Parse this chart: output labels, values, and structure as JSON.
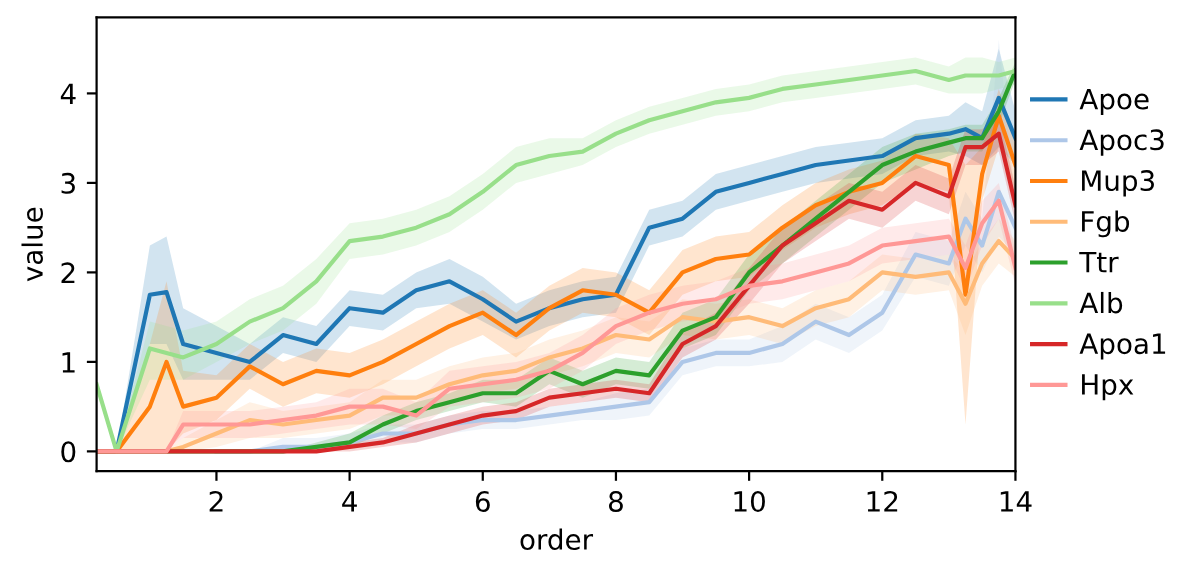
{
  "chart_data": {
    "type": "line",
    "xlabel": "order",
    "ylabel": "value",
    "x": [
      0.2,
      0.5,
      1,
      1.25,
      1.5,
      2,
      2.5,
      3,
      3.5,
      4,
      4.5,
      5,
      5.5,
      6,
      6.5,
      7,
      7.5,
      8,
      8.5,
      9,
      9.5,
      10,
      10.5,
      11,
      11.5,
      12,
      12.5,
      13,
      13.25,
      13.5,
      13.75,
      14
    ],
    "xlim": [
      0.2,
      14.0
    ],
    "xticks": [
      2,
      4,
      6,
      8,
      10,
      12,
      14
    ],
    "ylim": [
      -0.22,
      4.85
    ],
    "yticks": [
      0,
      1,
      2,
      3,
      4
    ],
    "grid": false,
    "legend": "right",
    "marker": "none",
    "line_style": "solid",
    "series": [
      {
        "name": "Apoe",
        "color": "#1f77b4",
        "values": [
          0,
          0,
          1.75,
          1.78,
          1.2,
          1.1,
          1.0,
          1.3,
          1.2,
          1.6,
          1.55,
          1.8,
          1.9,
          1.7,
          1.45,
          1.6,
          1.7,
          1.75,
          2.5,
          2.6,
          2.9,
          3.0,
          3.1,
          3.2,
          3.25,
          3.3,
          3.5,
          3.55,
          3.6,
          3.5,
          3.95,
          3.5
        ],
        "lower": [
          0,
          0,
          1.2,
          1.2,
          0.8,
          0.8,
          0.8,
          1.1,
          1.0,
          1.4,
          1.35,
          1.6,
          1.65,
          1.45,
          1.25,
          1.4,
          1.5,
          1.55,
          2.3,
          2.4,
          2.7,
          2.8,
          2.9,
          3.0,
          3.05,
          3.1,
          3.3,
          3.35,
          3.3,
          3.2,
          3.4,
          3.2
        ],
        "upper": [
          0,
          0,
          2.3,
          2.4,
          1.6,
          1.4,
          1.2,
          1.5,
          1.4,
          1.8,
          1.75,
          2.0,
          2.15,
          1.95,
          1.65,
          1.8,
          1.9,
          1.95,
          2.7,
          2.8,
          3.1,
          3.2,
          3.3,
          3.4,
          3.45,
          3.5,
          3.7,
          3.75,
          3.9,
          3.8,
          4.5,
          3.8
        ]
      },
      {
        "name": "Apoc3",
        "color": "#aec7e8",
        "values": [
          null,
          null,
          null,
          null,
          null,
          0,
          0,
          0.05,
          0.05,
          0.1,
          0.2,
          0.2,
          0.3,
          0.35,
          0.35,
          0.4,
          0.45,
          0.5,
          0.55,
          1.0,
          1.1,
          1.1,
          1.2,
          1.45,
          1.3,
          1.55,
          2.2,
          2.1,
          2.6,
          2.3,
          2.9,
          2.5
        ],
        "lower": [
          0,
          0,
          0,
          0,
          0,
          0,
          0,
          0,
          0,
          0.05,
          0.1,
          0.1,
          0.2,
          0.25,
          0.25,
          0.3,
          0.35,
          0.35,
          0.4,
          0.85,
          0.95,
          0.95,
          1.0,
          1.25,
          1.1,
          1.35,
          1.95,
          1.85,
          2.3,
          2.0,
          2.4,
          2.2
        ],
        "upper": [
          0,
          0,
          0,
          0,
          0,
          0,
          0,
          0.15,
          0.15,
          0.2,
          0.3,
          0.3,
          0.4,
          0.45,
          0.45,
          0.5,
          0.55,
          0.65,
          0.7,
          1.15,
          1.25,
          1.25,
          1.4,
          1.65,
          1.5,
          1.75,
          2.45,
          2.35,
          2.9,
          2.6,
          4.6,
          2.8
        ]
      },
      {
        "name": "Mup3",
        "color": "#ff7f0e",
        "values": [
          0,
          0,
          0.5,
          1.0,
          0.5,
          0.6,
          0.95,
          0.75,
          0.9,
          0.85,
          1.0,
          1.2,
          1.4,
          1.55,
          1.3,
          1.6,
          1.8,
          1.75,
          1.55,
          2.0,
          2.15,
          2.2,
          2.5,
          2.75,
          2.9,
          3.0,
          3.3,
          3.2,
          1.75,
          3.1,
          3.75,
          3.2
        ],
        "lower": [
          0,
          0,
          0,
          0,
          0.2,
          0.35,
          0.7,
          0.5,
          0.65,
          0.6,
          0.75,
          0.95,
          1.15,
          1.3,
          1.05,
          1.35,
          1.55,
          1.5,
          1.3,
          1.75,
          1.9,
          1.95,
          2.25,
          2.5,
          2.65,
          2.75,
          3.0,
          2.9,
          0.3,
          2.8,
          3.4,
          2.9
        ],
        "upper": [
          0,
          0,
          1.2,
          1.9,
          0.9,
          0.85,
          1.2,
          1.0,
          1.15,
          1.1,
          1.25,
          1.45,
          1.65,
          1.8,
          1.55,
          1.85,
          2.05,
          2.0,
          1.8,
          2.25,
          2.4,
          2.45,
          2.75,
          3.0,
          3.15,
          3.25,
          3.55,
          3.5,
          3.2,
          3.4,
          4.05,
          3.5
        ]
      },
      {
        "name": "Fgb",
        "color": "#ffbb78",
        "values": [
          0,
          0,
          0,
          0,
          0.05,
          0.2,
          0.35,
          0.3,
          0.35,
          0.4,
          0.6,
          0.6,
          0.75,
          0.85,
          0.9,
          1.05,
          1.15,
          1.3,
          1.25,
          1.5,
          1.45,
          1.5,
          1.4,
          1.6,
          1.7,
          2.0,
          1.95,
          2.0,
          1.65,
          2.1,
          2.35,
          2.15
        ],
        "lower": [
          0,
          0,
          0,
          0,
          0,
          0.05,
          0.15,
          0.15,
          0.2,
          0.25,
          0.4,
          0.4,
          0.55,
          0.65,
          0.7,
          0.85,
          0.95,
          1.1,
          1.05,
          1.3,
          1.25,
          1.3,
          1.2,
          1.4,
          1.5,
          1.8,
          1.75,
          1.8,
          1.3,
          1.85,
          2.1,
          1.95
        ],
        "upper": [
          0,
          0,
          0,
          0,
          0.15,
          0.35,
          0.55,
          0.45,
          0.5,
          0.55,
          0.8,
          0.8,
          0.95,
          1.05,
          1.1,
          1.25,
          1.35,
          1.5,
          1.45,
          1.7,
          1.65,
          1.7,
          1.6,
          1.8,
          1.9,
          2.2,
          2.15,
          2.2,
          2.0,
          2.35,
          2.6,
          2.35
        ]
      },
      {
        "name": "Ttr",
        "color": "#2ca02c",
        "values": [
          0,
          0,
          0,
          0,
          0,
          0,
          0,
          0,
          0.05,
          0.1,
          0.3,
          0.45,
          0.55,
          0.65,
          0.65,
          0.9,
          0.75,
          0.9,
          0.85,
          1.35,
          1.5,
          2.0,
          2.3,
          2.6,
          2.9,
          3.2,
          3.35,
          3.45,
          3.5,
          3.5,
          3.8,
          4.25
        ],
        "lower": [
          0,
          0,
          0,
          0,
          0,
          0,
          0,
          0,
          0,
          0.05,
          0.2,
          0.35,
          0.45,
          0.55,
          0.5,
          0.75,
          0.6,
          0.75,
          0.7,
          1.15,
          1.3,
          1.8,
          2.1,
          2.4,
          2.7,
          3.0,
          3.15,
          3.3,
          3.35,
          3.35,
          3.65,
          4.15
        ],
        "upper": [
          0,
          0,
          0,
          0,
          0,
          0,
          0,
          0,
          0.1,
          0.2,
          0.4,
          0.55,
          0.65,
          0.8,
          0.8,
          1.05,
          0.9,
          1.05,
          1.0,
          1.55,
          1.7,
          2.2,
          2.5,
          2.8,
          3.1,
          3.4,
          3.55,
          3.6,
          3.65,
          3.65,
          3.95,
          4.35
        ]
      },
      {
        "name": "Alb",
        "color": "#98df8a",
        "values": [
          0.75,
          0,
          1.15,
          1.1,
          1.05,
          1.2,
          1.45,
          1.6,
          1.9,
          2.35,
          2.4,
          2.5,
          2.65,
          2.9,
          3.2,
          3.3,
          3.35,
          3.55,
          3.7,
          3.8,
          3.9,
          3.95,
          4.05,
          4.1,
          4.15,
          4.2,
          4.25,
          4.15,
          4.2,
          4.2,
          4.2,
          4.25
        ],
        "lower": [
          0.75,
          0,
          0.8,
          0.8,
          0.8,
          1.0,
          1.2,
          1.35,
          1.65,
          2.15,
          2.2,
          2.3,
          2.45,
          2.7,
          3.0,
          3.1,
          3.2,
          3.4,
          3.55,
          3.65,
          3.75,
          3.8,
          3.9,
          3.95,
          4.0,
          4.05,
          4.1,
          4.0,
          4.0,
          4.0,
          4.05,
          4.1
        ],
        "upper": [
          0.75,
          0,
          1.45,
          1.4,
          1.35,
          1.45,
          1.7,
          1.85,
          2.15,
          2.55,
          2.6,
          2.7,
          2.85,
          3.1,
          3.4,
          3.5,
          3.5,
          3.7,
          3.85,
          3.95,
          4.05,
          4.1,
          4.2,
          4.25,
          4.3,
          4.35,
          4.4,
          4.3,
          4.4,
          4.4,
          4.35,
          4.4
        ]
      },
      {
        "name": "Apoa1",
        "color": "#d62728",
        "values": [
          0,
          0,
          0,
          0,
          0,
          0,
          0,
          0,
          0,
          0.05,
          0.1,
          0.2,
          0.3,
          0.4,
          0.45,
          0.6,
          0.65,
          0.7,
          0.65,
          1.2,
          1.4,
          1.85,
          2.3,
          2.55,
          2.8,
          2.7,
          3.0,
          2.85,
          3.4,
          3.4,
          3.55,
          2.75
        ],
        "lower": [
          0,
          0,
          0,
          0,
          0,
          0,
          0,
          0,
          0,
          0,
          0.05,
          0.1,
          0.2,
          0.3,
          0.35,
          0.5,
          0.55,
          0.6,
          0.55,
          1.05,
          1.25,
          1.65,
          2.1,
          2.35,
          2.6,
          2.5,
          2.8,
          2.65,
          3.2,
          3.2,
          3.35,
          2.55
        ],
        "upper": [
          0,
          0,
          0,
          0,
          0,
          0,
          0,
          0,
          0,
          0.1,
          0.15,
          0.3,
          0.4,
          0.5,
          0.55,
          0.7,
          0.75,
          0.8,
          0.75,
          1.35,
          1.55,
          2.05,
          2.5,
          2.75,
          3.0,
          2.9,
          3.2,
          3.05,
          3.6,
          3.6,
          3.75,
          2.95
        ]
      },
      {
        "name": "Hpx",
        "color": "#ff9896",
        "values": [
          0,
          0,
          0,
          0,
          0.3,
          0.3,
          0.3,
          0.35,
          0.4,
          0.5,
          0.5,
          0.4,
          0.7,
          0.75,
          0.8,
          0.9,
          1.1,
          1.4,
          1.55,
          1.65,
          1.7,
          1.85,
          1.9,
          2.0,
          2.1,
          2.3,
          2.35,
          2.4,
          2.05,
          2.55,
          2.8,
          2.05
        ],
        "lower": [
          0,
          0,
          0,
          0,
          0.15,
          0.15,
          0.15,
          0.2,
          0.25,
          0.3,
          0.3,
          0.25,
          0.5,
          0.55,
          0.6,
          0.7,
          0.9,
          1.2,
          1.35,
          1.45,
          1.5,
          1.65,
          1.7,
          1.8,
          1.9,
          2.1,
          2.15,
          2.2,
          1.8,
          2.3,
          2.6,
          1.85
        ],
        "upper": [
          0,
          0,
          0,
          0,
          0.45,
          0.45,
          0.45,
          0.5,
          0.55,
          0.7,
          0.7,
          0.55,
          0.9,
          0.95,
          1.0,
          1.1,
          1.3,
          1.6,
          1.75,
          1.85,
          1.9,
          2.05,
          2.1,
          2.2,
          2.3,
          2.5,
          2.55,
          2.6,
          2.3,
          2.8,
          3.0,
          2.25
        ]
      }
    ]
  }
}
